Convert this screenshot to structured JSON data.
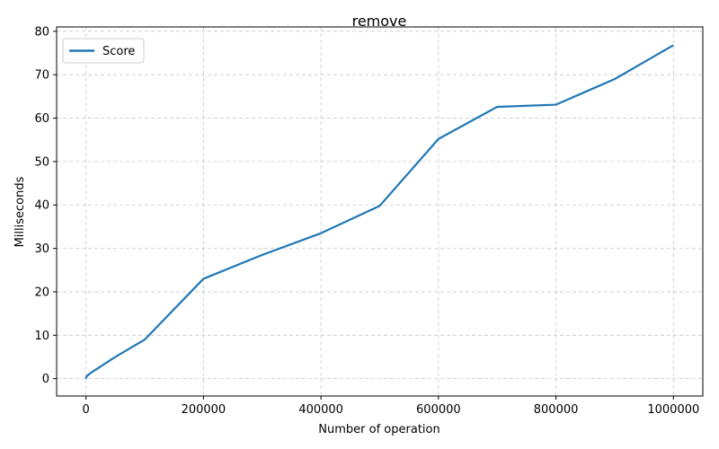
{
  "chart_data": {
    "type": "line",
    "title": "remove",
    "xlabel": "Number of operation",
    "ylabel": "Milliseconds",
    "xlim": [
      -50000,
      1050000
    ],
    "ylim": [
      -4,
      81
    ],
    "xticks": [
      0,
      200000,
      400000,
      600000,
      800000,
      1000000
    ],
    "yticks": [
      0,
      10,
      20,
      30,
      40,
      50,
      60,
      70,
      80
    ],
    "grid": true,
    "legend_position": "upper-left",
    "series": [
      {
        "name": "Score",
        "color": "#1f77b4",
        "x": [
          0,
          1000,
          5000,
          10000,
          50000,
          100000,
          200000,
          300000,
          400000,
          500000,
          600000,
          700000,
          800000,
          900000,
          1000000
        ],
        "y": [
          0.0,
          0.5,
          1.0,
          1.5,
          5.0,
          9.0,
          23.0,
          28.5,
          33.5,
          39.8,
          55.2,
          62.6,
          63.1,
          69.0,
          76.8
        ]
      }
    ]
  }
}
